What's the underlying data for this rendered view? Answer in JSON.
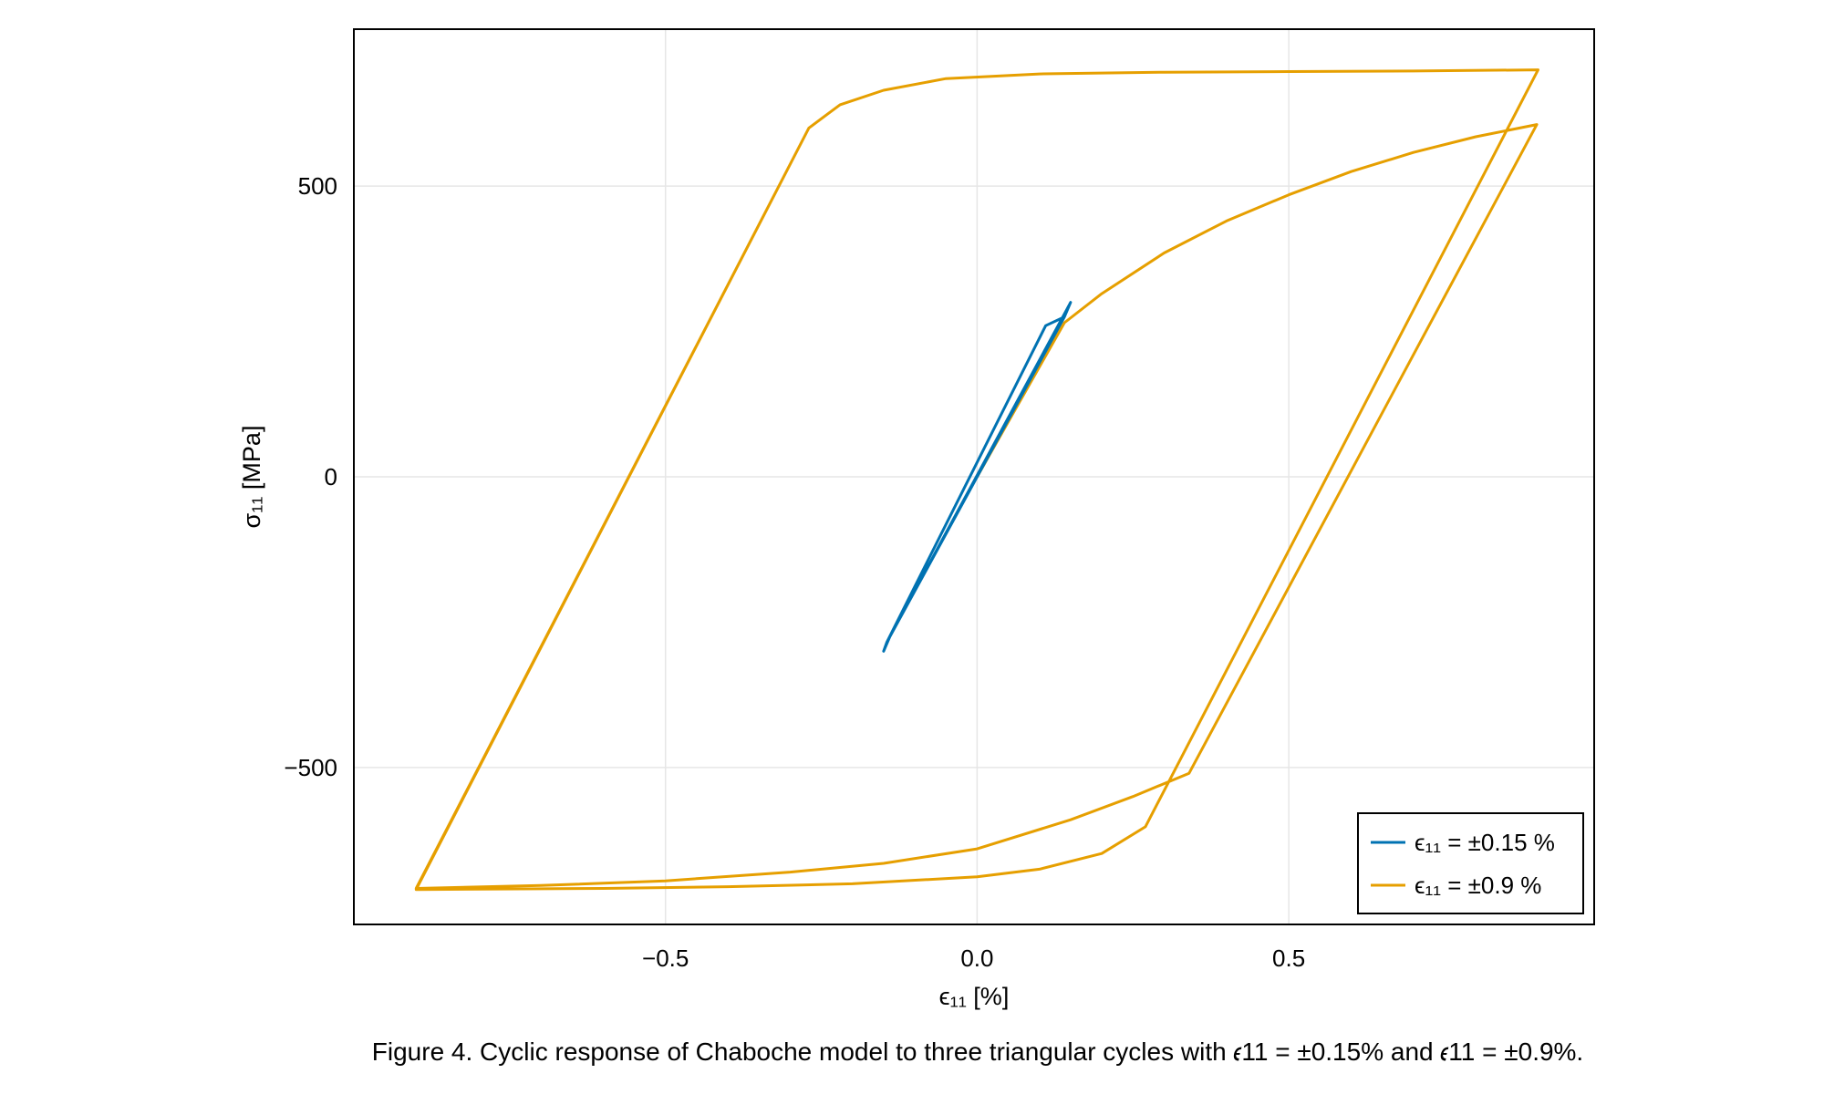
{
  "chart_data": {
    "type": "line",
    "xlabel": "ϵ₁₁ [%]",
    "ylabel": "σ₁₁ [MPa]",
    "xlim": [
      -1.0,
      0.99
    ],
    "ylim": [
      -770,
      770
    ],
    "xticks": [
      -0.5,
      0.0,
      0.5
    ],
    "xtick_labels": [
      "−0.5",
      "0.0",
      "0.5"
    ],
    "yticks": [
      -500,
      0,
      500
    ],
    "ytick_labels": [
      "−500",
      "0",
      "500"
    ],
    "grid": true,
    "legend_position": "bottom-right",
    "series": [
      {
        "name": "ϵ₁₁ = ±0.15 %",
        "color": "#0072b2",
        "width": 3,
        "x": [
          0,
          0.15,
          0.14,
          0.11,
          -0.145,
          -0.15,
          -0.14,
          0.145,
          0.15,
          0.14,
          -0.145,
          -0.15,
          -0.14,
          0.145
        ],
        "y": [
          0,
          300,
          275,
          260,
          -285,
          -300,
          -275,
          290,
          300,
          275,
          -285,
          -300,
          -275,
          290
        ]
      },
      {
        "name": "ϵ₁₁ = ±0.9 %",
        "color": "#e69f00",
        "width": 3,
        "x": [
          0,
          0.14,
          0.2,
          0.3,
          0.4,
          0.5,
          0.6,
          0.7,
          0.8,
          0.898,
          0.34,
          0.25,
          0.15,
          0.0,
          -0.15,
          -0.3,
          -0.5,
          -0.7,
          -0.9,
          -0.27,
          -0.22,
          -0.15,
          -0.05,
          0.1,
          0.3,
          0.5,
          0.7,
          0.9,
          0.27,
          0.2,
          0.1,
          0.0,
          -0.2,
          -0.4,
          -0.6,
          -0.9,
          -0.27,
          -0.22,
          -0.15,
          -0.05,
          0.1,
          0.3,
          0.5,
          0.7,
          0.9
        ],
        "y": [
          0,
          265,
          315,
          385,
          440,
          485,
          525,
          558,
          585,
          606,
          -510,
          -550,
          -590,
          -640,
          -665,
          -680,
          -695,
          -703,
          -708,
          600,
          640,
          665,
          685,
          693,
          696,
          697,
          698,
          700,
          -602,
          -648,
          -675,
          -688,
          -700,
          -705,
          -708,
          -710,
          600,
          640,
          665,
          685,
          693,
          696,
          697,
          698,
          700
        ]
      }
    ]
  },
  "caption": "Figure 4. Cyclic response of Chaboche model to three triangular cycles with 𝜖11 = ±0.15% and 𝜖11 = ±0.9%.",
  "colors": {
    "series_1": "#0072b2",
    "series_2": "#e69f00",
    "grid": "#e6e6e6",
    "frame": "#000000"
  }
}
